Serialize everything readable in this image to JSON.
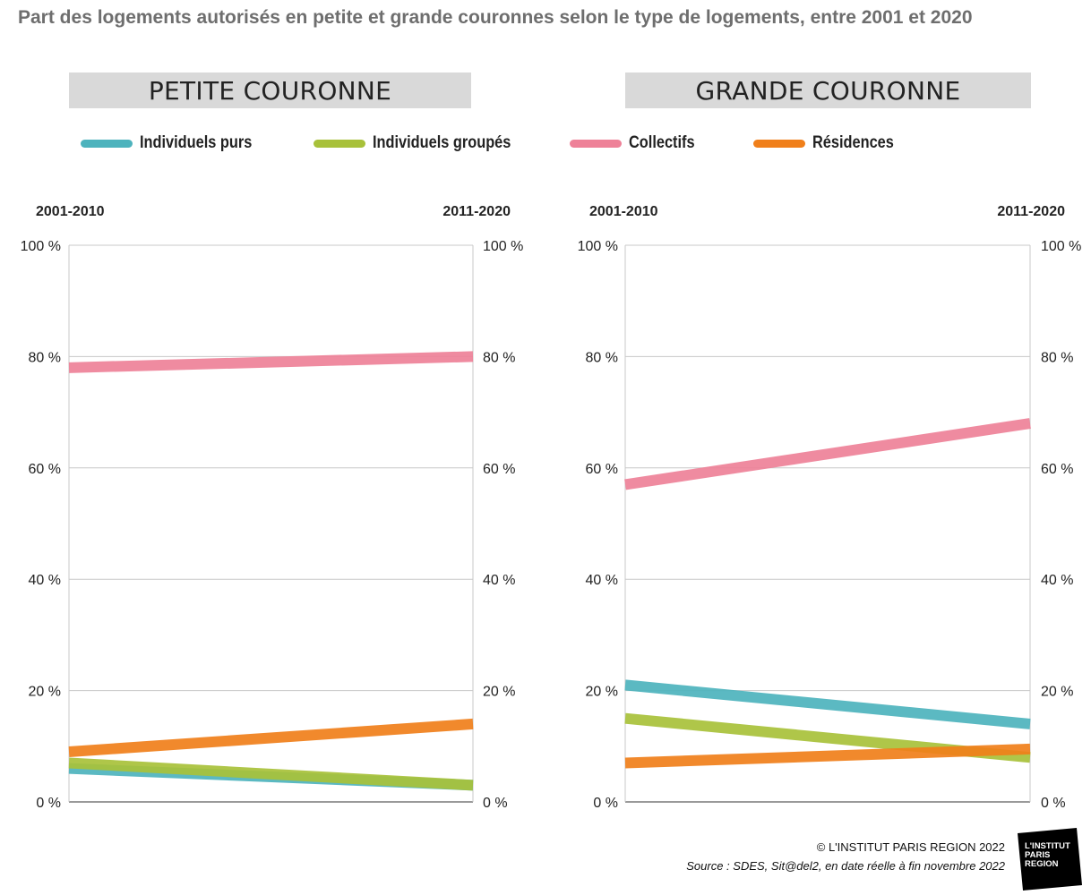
{
  "title": "Part des logements autorisés en petite et grande couronnes selon le type de logements, entre 2001 et 2020",
  "legend": [
    {
      "label": "Individuels purs",
      "color": "#4db3bd"
    },
    {
      "label": "Individuels groupés",
      "color": "#a8c13a"
    },
    {
      "label": "Collectifs",
      "color": "#ee8198"
    },
    {
      "label": "Résidences",
      "color": "#f07f1a"
    }
  ],
  "footer": {
    "copyright": "© L'INSTITUT PARIS REGION 2022",
    "source": "Source : SDES, Sit@del2, en date réelle à fin novembre 2022"
  },
  "logo": {
    "line1": "L'INSTITUT",
    "line2": "PARIS",
    "line3": "REGION"
  },
  "chart_data": [
    {
      "type": "line",
      "title": "PETITE COURONNE",
      "categories": [
        "2001-2010",
        "2011-2020"
      ],
      "ylim": [
        0,
        100
      ],
      "yticks": [
        "0 %",
        "20 %",
        "40 %",
        "60 %",
        "80 %",
        "100 %"
      ],
      "grid": true,
      "series": [
        {
          "name": "Individuels purs",
          "values": [
            6,
            3
          ],
          "color": "#4db3bd"
        },
        {
          "name": "Individuels groupés",
          "values": [
            7,
            3
          ],
          "color": "#a8c13a"
        },
        {
          "name": "Collectifs",
          "values": [
            78,
            80
          ],
          "color": "#ee8198"
        },
        {
          "name": "Résidences",
          "values": [
            9,
            14
          ],
          "color": "#f07f1a"
        }
      ]
    },
    {
      "type": "line",
      "title": "GRANDE COURONNE",
      "categories": [
        "2001-2010",
        "2011-2020"
      ],
      "ylim": [
        0,
        100
      ],
      "yticks": [
        "0 %",
        "20 %",
        "40 %",
        "60 %",
        "80 %",
        "100 %"
      ],
      "grid": true,
      "series": [
        {
          "name": "Individuels purs",
          "values": [
            21,
            14
          ],
          "color": "#4db3bd"
        },
        {
          "name": "Individuels groupés",
          "values": [
            15,
            8
          ],
          "color": "#a8c13a"
        },
        {
          "name": "Collectifs",
          "values": [
            57,
            68
          ],
          "color": "#ee8198"
        },
        {
          "name": "Résidences",
          "values": [
            7,
            9.5
          ],
          "color": "#f07f1a"
        }
      ]
    }
  ]
}
